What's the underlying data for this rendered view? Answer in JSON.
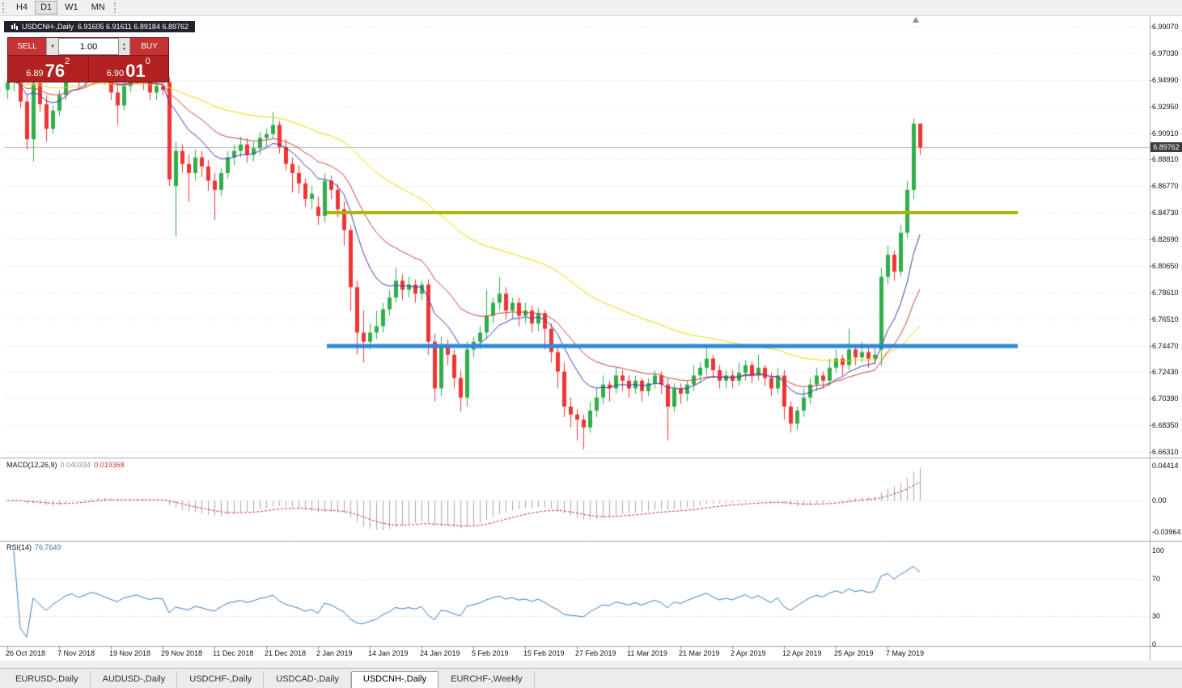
{
  "toolbar": {
    "timeframes": [
      "H4",
      "D1",
      "W1",
      "MN"
    ],
    "active": "D1"
  },
  "chart_window": {
    "title_symbol": "USDCNH-,Daily",
    "title_ohlc": "6.91605 6.91611 6.89184 6.89762",
    "current_price": "6.89762"
  },
  "trade_panel": {
    "sell_label": "SELL",
    "buy_label": "BUY",
    "volume": "1.00",
    "sell_price_small": "6.89",
    "sell_price_big": "76",
    "sell_price_sup": "2",
    "buy_price_small": "6.90",
    "buy_price_big": "01",
    "buy_price_sup": "0"
  },
  "indicators": {
    "macd": {
      "label": "MACD(12,26,9)",
      "value1": "0.040334",
      "value2": "0.019368",
      "axis": [
        "0.04414",
        "0.00",
        "-0.03964"
      ]
    },
    "rsi": {
      "label": "RSI(14)",
      "value": "76.7649",
      "axis": [
        "100",
        "70",
        "30",
        "0"
      ]
    }
  },
  "tabs": {
    "items": [
      "EURUSD-,Daily",
      "AUDUSD-,Daily",
      "USDCHF-,Daily",
      "USDCAD-,Daily",
      "USDCNH-,Daily",
      "EURCHF-,Weekly"
    ],
    "active_index": 4
  },
  "colors": {
    "candle_up": "#2fae4a",
    "candle_down": "#f03333",
    "ma_fast_blue": "#3c3cae",
    "ma_mid_red": "#d04040",
    "ma_slow_yellow": "#f0d800",
    "level_olive": "#a6b400",
    "level_blue": "#2f87d8",
    "macd_hist": "#a8a8a8",
    "macd_signal": "#cc3232",
    "rsi_line": "#3e7cbe",
    "panel_red": "#b22222",
    "button_red": "#c43434",
    "current_price_line": "#b4b4b4"
  },
  "chart_data": {
    "type": "candlestick",
    "symbol": "USDCNH",
    "timeframe": "Daily",
    "price_range": {
      "max": 6.9907,
      "min": 6.6631
    },
    "price_axis_labels": [
      "6.99070",
      "6.97030",
      "6.94990",
      "6.92950",
      "6.90910",
      "6.88810",
      "6.86770",
      "6.84730",
      "6.82690",
      "6.80650",
      "6.78610",
      "6.76510",
      "6.74470",
      "6.72430",
      "6.70390",
      "6.68350",
      "6.66310"
    ],
    "date_axis_labels": [
      "26 Oct 2018",
      "7 Nov 2018",
      "19 Nov 2018",
      "29 Nov 2018",
      "11 Dec 2018",
      "21 Dec 2018",
      "2 Jan 2019",
      "14 Jan 2019",
      "24 Jan 2019",
      "5 Feb 2019",
      "15 Feb 2019",
      "27 Feb 2019",
      "11 Mar 2019",
      "21 Mar 2019",
      "2 Apr 2019",
      "12 Apr 2019",
      "25 Apr 2019",
      "7 May 2019"
    ],
    "date_tick_every": 8,
    "levels": [
      {
        "price": 6.8473,
        "color": "#a6b400",
        "width": 4
      },
      {
        "price": 6.7447,
        "color": "#2f87d8",
        "width": 5
      }
    ],
    "moving_averages": [
      {
        "period": 55,
        "color": "#f0d800"
      },
      {
        "period": 21,
        "color": "#d04040"
      },
      {
        "period": 10,
        "color": "#3c3cae"
      }
    ],
    "macd": {
      "fast": 12,
      "slow": 26,
      "signal": 9,
      "axis_max": 0.04414,
      "axis_min": -0.03964
    },
    "rsi": {
      "period": 14,
      "levels": [
        70,
        30
      ]
    },
    "candles_ohlc": [
      [
        6.942,
        6.952,
        6.935,
        6.948
      ],
      [
        6.948,
        6.958,
        6.941,
        6.952
      ],
      [
        6.952,
        6.955,
        6.928,
        6.933
      ],
      [
        6.933,
        6.938,
        6.896,
        6.904
      ],
      [
        6.904,
        6.952,
        6.887,
        6.947
      ],
      [
        6.947,
        6.951,
        6.925,
        6.931
      ],
      [
        6.931,
        6.938,
        6.902,
        6.912
      ],
      [
        6.912,
        6.93,
        6.908,
        6.926
      ],
      [
        6.926,
        6.942,
        6.922,
        6.938
      ],
      [
        6.938,
        6.958,
        6.934,
        6.954
      ],
      [
        6.954,
        6.966,
        6.948,
        6.962
      ],
      [
        6.962,
        6.968,
        6.942,
        6.948
      ],
      [
        6.948,
        6.962,
        6.944,
        6.958
      ],
      [
        6.958,
        6.977,
        6.954,
        6.972
      ],
      [
        6.972,
        6.976,
        6.958,
        6.964
      ],
      [
        6.964,
        6.97,
        6.946,
        6.952
      ],
      [
        6.952,
        6.958,
        6.934,
        6.94
      ],
      [
        6.94,
        6.946,
        6.915,
        6.93
      ],
      [
        6.93,
        6.95,
        6.926,
        6.945
      ],
      [
        6.945,
        6.958,
        6.94,
        6.952
      ],
      [
        6.952,
        6.964,
        6.946,
        6.958
      ],
      [
        6.958,
        6.962,
        6.942,
        6.948
      ],
      [
        6.948,
        6.954,
        6.934,
        6.94
      ],
      [
        6.94,
        6.95,
        6.934,
        6.945
      ],
      [
        6.945,
        6.952,
        6.938,
        6.942
      ],
      [
        6.948,
        6.952,
        6.868,
        6.873
      ],
      [
        6.868,
        6.902,
        6.829,
        6.895
      ],
      [
        6.895,
        6.9,
        6.878,
        6.885
      ],
      [
        6.885,
        6.892,
        6.856,
        6.878
      ],
      [
        6.878,
        6.896,
        6.872,
        6.89
      ],
      [
        6.89,
        6.895,
        6.875,
        6.883
      ],
      [
        6.883,
        6.888,
        6.864,
        6.872
      ],
      [
        6.872,
        6.878,
        6.842,
        6.865
      ],
      [
        6.865,
        6.882,
        6.86,
        6.878
      ],
      [
        6.878,
        6.895,
        6.874,
        6.89
      ],
      [
        6.89,
        6.9,
        6.884,
        6.895
      ],
      [
        6.895,
        6.906,
        6.89,
        6.9
      ],
      [
        6.9,
        6.905,
        6.886,
        6.892
      ],
      [
        6.892,
        6.902,
        6.887,
        6.897
      ],
      [
        6.897,
        6.91,
        6.892,
        6.905
      ],
      [
        6.905,
        6.912,
        6.898,
        6.908
      ],
      [
        6.908,
        6.925,
        6.904,
        6.915
      ],
      [
        6.915,
        6.918,
        6.893,
        6.898
      ],
      [
        6.898,
        6.904,
        6.88,
        6.885
      ],
      [
        6.885,
        6.89,
        6.863,
        6.878
      ],
      [
        6.878,
        6.884,
        6.862,
        6.87
      ],
      [
        6.87,
        6.874,
        6.852,
        6.858
      ],
      [
        6.858,
        6.868,
        6.85,
        6.862
      ],
      [
        6.852,
        6.86,
        6.838,
        6.845
      ],
      [
        6.845,
        6.878,
        6.84,
        6.872
      ],
      [
        6.872,
        6.876,
        6.858,
        6.865
      ],
      [
        6.865,
        6.87,
        6.844,
        6.85
      ],
      [
        6.85,
        6.856,
        6.822,
        6.834
      ],
      [
        6.834,
        6.838,
        6.772,
        6.79
      ],
      [
        6.79,
        6.795,
        6.738,
        6.755
      ],
      [
        6.755,
        6.772,
        6.732,
        6.748
      ],
      [
        6.748,
        6.762,
        6.742,
        6.755
      ],
      [
        6.755,
        6.772,
        6.75,
        6.76
      ],
      [
        6.76,
        6.778,
        6.755,
        6.773
      ],
      [
        6.773,
        6.788,
        6.768,
        6.782
      ],
      [
        6.782,
        6.805,
        6.778,
        6.795
      ],
      [
        6.795,
        6.8,
        6.78,
        6.788
      ],
      [
        6.788,
        6.798,
        6.782,
        6.792
      ],
      [
        6.792,
        6.796,
        6.778,
        6.785
      ],
      [
        6.785,
        6.795,
        6.78,
        6.792
      ],
      [
        6.792,
        6.796,
        6.738,
        6.748
      ],
      [
        6.748,
        6.754,
        6.702,
        6.712
      ],
      [
        6.712,
        6.752,
        6.706,
        6.745
      ],
      [
        6.745,
        6.75,
        6.73,
        6.738
      ],
      [
        6.738,
        6.742,
        6.712,
        6.72
      ],
      [
        6.72,
        6.726,
        6.694,
        6.705
      ],
      [
        6.705,
        6.748,
        6.698,
        6.742
      ],
      [
        6.742,
        6.752,
        6.736,
        6.748
      ],
      [
        6.748,
        6.76,
        6.742,
        6.755
      ],
      [
        6.755,
        6.788,
        6.75,
        6.768
      ],
      [
        6.768,
        6.782,
        6.762,
        6.778
      ],
      [
        6.778,
        6.798,
        6.772,
        6.785
      ],
      [
        6.785,
        6.79,
        6.765,
        6.772
      ],
      [
        6.772,
        6.782,
        6.766,
        6.778
      ],
      [
        6.778,
        6.782,
        6.76,
        6.768
      ],
      [
        6.768,
        6.778,
        6.762,
        6.772
      ],
      [
        6.772,
        6.776,
        6.755,
        6.762
      ],
      [
        6.762,
        6.774,
        6.756,
        6.77
      ],
      [
        6.77,
        6.772,
        6.742,
        6.758
      ],
      [
        6.758,
        6.762,
        6.732,
        6.74
      ],
      [
        6.74,
        6.746,
        6.712,
        6.725
      ],
      [
        6.725,
        6.732,
        6.69,
        6.698
      ],
      [
        6.698,
        6.705,
        6.682,
        6.692
      ],
      [
        6.692,
        6.696,
        6.672,
        6.688
      ],
      [
        6.688,
        6.692,
        6.665,
        6.682
      ],
      [
        6.682,
        6.702,
        6.678,
        6.695
      ],
      [
        6.695,
        6.712,
        6.69,
        6.705
      ],
      [
        6.705,
        6.722,
        6.7,
        6.715
      ],
      [
        6.715,
        6.718,
        6.702,
        6.712
      ],
      [
        6.712,
        6.728,
        6.708,
        6.722
      ],
      [
        6.722,
        6.726,
        6.71,
        6.718
      ],
      [
        6.718,
        6.722,
        6.705,
        6.712
      ],
      [
        6.712,
        6.722,
        6.708,
        6.718
      ],
      [
        6.718,
        6.72,
        6.702,
        6.71
      ],
      [
        6.71,
        6.72,
        6.706,
        6.716
      ],
      [
        6.716,
        6.726,
        6.712,
        6.722
      ],
      [
        6.722,
        6.725,
        6.708,
        6.715
      ],
      [
        6.715,
        6.72,
        6.672,
        6.698
      ],
      [
        6.698,
        6.716,
        6.694,
        6.712
      ],
      [
        6.712,
        6.716,
        6.7,
        6.708
      ],
      [
        6.708,
        6.718,
        6.702,
        6.715
      ],
      [
        6.715,
        6.73,
        6.71,
        6.722
      ],
      [
        6.722,
        6.732,
        6.716,
        6.728
      ],
      [
        6.728,
        6.745,
        6.722,
        6.735
      ],
      [
        6.735,
        6.738,
        6.72,
        6.726
      ],
      [
        6.726,
        6.73,
        6.712,
        6.718
      ],
      [
        6.718,
        6.726,
        6.712,
        6.722
      ],
      [
        6.722,
        6.726,
        6.712,
        6.718
      ],
      [
        6.718,
        6.732,
        6.714,
        6.724
      ],
      [
        6.724,
        6.734,
        6.718,
        6.73
      ],
      [
        6.73,
        6.733,
        6.716,
        6.722
      ],
      [
        6.722,
        6.738,
        6.718,
        6.728
      ],
      [
        6.728,
        6.73,
        6.714,
        6.72
      ],
      [
        6.72,
        6.724,
        6.706,
        6.712
      ],
      [
        6.712,
        6.728,
        6.708,
        6.722
      ],
      [
        6.722,
        6.726,
        6.688,
        6.698
      ],
      [
        6.698,
        6.702,
        6.678,
        6.685
      ],
      [
        6.685,
        6.698,
        6.68,
        6.695
      ],
      [
        6.695,
        6.712,
        6.69,
        6.705
      ],
      [
        6.705,
        6.72,
        6.7,
        6.715
      ],
      [
        6.715,
        6.728,
        6.71,
        6.722
      ],
      [
        6.722,
        6.725,
        6.712,
        6.718
      ],
      [
        6.718,
        6.735,
        6.714,
        6.728
      ],
      [
        6.728,
        6.742,
        6.724,
        6.735
      ],
      [
        6.735,
        6.738,
        6.722,
        6.73
      ],
      [
        6.73,
        6.758,
        6.726,
        6.742
      ],
      [
        6.742,
        6.746,
        6.73,
        6.736
      ],
      [
        6.736,
        6.748,
        6.732,
        6.74
      ],
      [
        6.74,
        6.744,
        6.728,
        6.735
      ],
      [
        6.735,
        6.746,
        6.73,
        6.738
      ],
      [
        6.742,
        6.805,
        6.729,
        6.798
      ],
      [
        6.798,
        6.822,
        6.792,
        6.815
      ],
      [
        6.815,
        6.818,
        6.795,
        6.802
      ],
      [
        6.802,
        6.838,
        6.798,
        6.832
      ],
      [
        6.832,
        6.872,
        6.828,
        6.865
      ],
      [
        6.865,
        6.92,
        6.858,
        6.916
      ],
      [
        6.91605,
        6.91611,
        6.89184,
        6.89762
      ]
    ]
  }
}
